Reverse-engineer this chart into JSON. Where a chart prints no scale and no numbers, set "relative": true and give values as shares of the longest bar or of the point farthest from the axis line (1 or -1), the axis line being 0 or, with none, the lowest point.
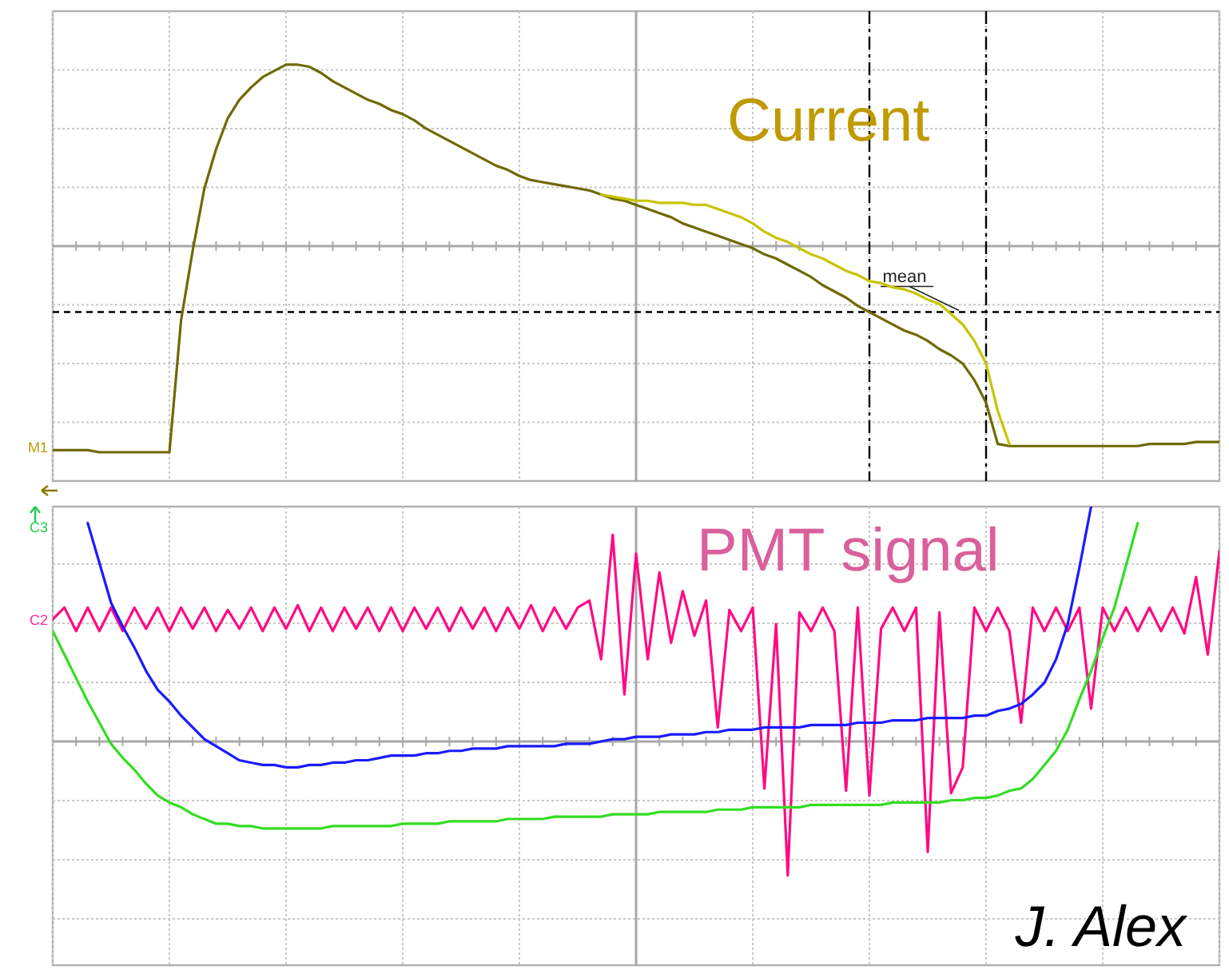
{
  "chart_data": [
    {
      "type": "line",
      "relative": true,
      "categories": [
        null,
        null,
        null,
        null,
        null,
        null,
        null,
        null,
        null,
        null,
        null,
        null,
        null,
        null,
        null,
        null,
        null,
        null,
        null,
        null,
        null,
        null,
        null,
        null,
        null,
        null,
        null,
        null,
        null,
        null,
        null,
        null,
        null,
        null,
        null,
        null,
        null,
        null,
        null,
        null,
        null,
        null,
        null,
        null,
        null,
        null,
        null,
        null,
        null,
        null,
        null,
        null,
        null,
        null,
        null,
        null,
        null,
        null,
        null,
        null,
        null,
        null,
        null,
        null,
        null,
        null,
        null,
        null,
        null,
        null,
        null,
        null,
        null,
        null,
        null,
        null,
        null,
        null,
        null,
        null,
        null,
        null,
        null,
        null,
        null,
        null,
        null,
        null,
        null,
        null,
        null,
        null,
        null,
        null,
        null,
        null,
        null,
        null,
        null,
        null,
        null
      ],
      "grid": true,
      "line_style": "solid",
      "series": [
        {
          "color": "#6e6a00",
          "values": [
            -0.99,
            -0.99,
            -0.99,
            -0.99,
            -1.0,
            -1.0,
            -1.0,
            -1.0,
            -1.0,
            -1.0,
            -1.0,
            -0.36,
            -0.02,
            0.28,
            0.47,
            0.62,
            0.71,
            0.77,
            0.82,
            0.85,
            0.88,
            0.88,
            0.87,
            0.84,
            0.8,
            0.77,
            0.74,
            0.71,
            0.69,
            0.66,
            0.64,
            0.61,
            0.57,
            0.54,
            0.51,
            0.48,
            0.45,
            0.42,
            0.39,
            0.37,
            0.34,
            0.32,
            0.31,
            0.3,
            0.29,
            0.28,
            0.27,
            0.25,
            0.23,
            0.22,
            0.2,
            0.18,
            0.16,
            0.14,
            0.11,
            0.09,
            0.07,
            0.05,
            0.03,
            0.01,
            -0.01,
            -0.04,
            -0.06,
            -0.09,
            -0.12,
            -0.15,
            -0.19,
            -0.22,
            -0.25,
            -0.29,
            -0.32,
            -0.35,
            -0.38,
            -0.41,
            -0.43,
            -0.46,
            -0.5,
            -0.53,
            -0.57,
            -0.65,
            -0.76,
            -0.96,
            -0.97,
            -0.97,
            -0.97,
            -0.97,
            -0.97,
            -0.97,
            -0.97,
            -0.97,
            -0.97,
            -0.97,
            -0.97,
            -0.97,
            -0.96,
            -0.96,
            -0.96,
            -0.96,
            -0.95,
            -0.95,
            -0.95
          ]
        },
        {
          "color": "#c8c400",
          "values": [
            null,
            null,
            null,
            null,
            null,
            null,
            null,
            null,
            null,
            null,
            null,
            null,
            null,
            null,
            null,
            null,
            null,
            null,
            null,
            null,
            null,
            null,
            null,
            null,
            null,
            null,
            null,
            null,
            null,
            null,
            null,
            null,
            null,
            null,
            null,
            null,
            null,
            null,
            null,
            null,
            null,
            null,
            null,
            null,
            null,
            null,
            null,
            0.25,
            0.24,
            0.23,
            0.22,
            0.22,
            0.21,
            0.21,
            0.21,
            0.2,
            0.2,
            0.18,
            0.16,
            0.14,
            0.11,
            0.07,
            0.04,
            0.02,
            -0.01,
            -0.04,
            -0.06,
            -0.09,
            -0.12,
            -0.14,
            -0.17,
            -0.18,
            -0.2,
            -0.21,
            -0.23,
            -0.26,
            -0.28,
            -0.33,
            -0.38,
            -0.46,
            -0.57,
            -0.8,
            -0.96,
            null,
            null,
            null,
            null,
            null,
            null,
            null,
            null,
            null,
            null,
            null,
            null,
            null,
            null,
            null,
            null,
            null,
            null
          ]
        }
      ],
      "ref_lines": [
        {
          "axis": "y",
          "value": -0.32,
          "label": "mean",
          "line_style": "dashed",
          "color": "#000000"
        }
      ],
      "annotations": [
        "M1",
        "Current"
      ]
    },
    {
      "type": "line",
      "relative": true,
      "categories": [
        null,
        null,
        null,
        null,
        null,
        null,
        null,
        null,
        null,
        null,
        null,
        null,
        null,
        null,
        null,
        null,
        null,
        null,
        null,
        null,
        null,
        null,
        null,
        null,
        null,
        null,
        null,
        null,
        null,
        null,
        null,
        null,
        null,
        null,
        null,
        null,
        null,
        null,
        null,
        null,
        null,
        null,
        null,
        null,
        null,
        null,
        null,
        null,
        null,
        null,
        null,
        null,
        null,
        null,
        null,
        null,
        null,
        null,
        null,
        null,
        null,
        null,
        null,
        null,
        null,
        null,
        null,
        null,
        null,
        null,
        null,
        null,
        null,
        null,
        null,
        null,
        null,
        null,
        null,
        null,
        null,
        null,
        null,
        null,
        null,
        null,
        null,
        null,
        null,
        null,
        null,
        null,
        null,
        null,
        null,
        null,
        null,
        null,
        null,
        null,
        null
      ],
      "grid": true,
      "line_style": "solid",
      "series": [
        {
          "color": "#ff0a84",
          "values": [
            0.52,
            0.57,
            0.47,
            0.57,
            0.47,
            0.57,
            0.47,
            0.57,
            0.48,
            0.57,
            0.47,
            0.57,
            0.48,
            0.57,
            0.47,
            0.56,
            0.48,
            0.57,
            0.47,
            0.57,
            0.48,
            0.58,
            0.47,
            0.57,
            0.47,
            0.57,
            0.48,
            0.57,
            0.47,
            0.57,
            0.47,
            0.57,
            0.48,
            0.57,
            0.47,
            0.57,
            0.48,
            0.57,
            0.47,
            0.57,
            0.48,
            0.58,
            0.47,
            0.57,
            0.48,
            0.57,
            0.6,
            0.35,
            0.88,
            0.2,
            0.8,
            0.35,
            0.72,
            0.42,
            0.64,
            0.45,
            0.6,
            0.06,
            0.56,
            0.47,
            0.57,
            -0.2,
            0.5,
            -0.57,
            0.55,
            0.47,
            0.57,
            0.47,
            -0.21,
            0.57,
            -0.23,
            0.48,
            0.57,
            0.47,
            0.57,
            -0.47,
            0.55,
            -0.22,
            -0.11,
            0.57,
            0.47,
            0.57,
            0.47,
            0.08,
            0.57,
            0.47,
            0.57,
            0.47,
            0.57,
            0.14,
            0.57,
            0.47,
            0.57,
            0.47,
            0.57,
            0.47,
            0.57,
            0.46,
            0.7,
            0.37,
            0.81
          ]
        },
        {
          "color": "#1a1aff",
          "values": [
            null,
            null,
            null,
            0.93,
            0.76,
            0.59,
            0.49,
            0.4,
            0.3,
            0.22,
            0.17,
            0.11,
            0.06,
            0.01,
            -0.02,
            -0.05,
            -0.08,
            -0.09,
            -0.1,
            -0.1,
            -0.11,
            -0.11,
            -0.1,
            -0.1,
            -0.09,
            -0.09,
            -0.08,
            -0.08,
            -0.07,
            -0.06,
            -0.06,
            -0.06,
            -0.05,
            -0.05,
            -0.04,
            -0.04,
            -0.03,
            -0.03,
            -0.03,
            -0.02,
            -0.02,
            -0.02,
            -0.02,
            -0.02,
            -0.01,
            -0.01,
            -0.01,
            0.0,
            0.01,
            0.01,
            0.02,
            0.02,
            0.02,
            0.03,
            0.03,
            0.03,
            0.04,
            0.04,
            0.05,
            0.05,
            0.05,
            0.06,
            0.06,
            0.06,
            0.06,
            0.07,
            0.07,
            0.07,
            0.07,
            0.08,
            0.08,
            0.08,
            0.09,
            0.09,
            0.09,
            0.1,
            0.1,
            0.1,
            0.1,
            0.11,
            0.11,
            0.13,
            0.14,
            0.16,
            0.2,
            0.25,
            0.35,
            0.5,
            0.74,
            1.0,
            null,
            null,
            null,
            null,
            null,
            null,
            null,
            null,
            null,
            null,
            null
          ]
        },
        {
          "color": "#33dd22",
          "values": [
            0.47,
            0.37,
            0.27,
            0.17,
            0.08,
            -0.01,
            -0.07,
            -0.12,
            -0.18,
            -0.23,
            -0.26,
            -0.28,
            -0.31,
            -0.33,
            -0.35,
            -0.35,
            -0.36,
            -0.36,
            -0.37,
            -0.37,
            -0.37,
            -0.37,
            -0.37,
            -0.37,
            -0.36,
            -0.36,
            -0.36,
            -0.36,
            -0.36,
            -0.36,
            -0.35,
            -0.35,
            -0.35,
            -0.35,
            -0.34,
            -0.34,
            -0.34,
            -0.34,
            -0.34,
            -0.33,
            -0.33,
            -0.33,
            -0.33,
            -0.32,
            -0.32,
            -0.32,
            -0.32,
            -0.32,
            -0.31,
            -0.31,
            -0.31,
            -0.31,
            -0.3,
            -0.3,
            -0.3,
            -0.3,
            -0.3,
            -0.29,
            -0.29,
            -0.29,
            -0.28,
            -0.28,
            -0.28,
            -0.28,
            -0.28,
            -0.27,
            -0.27,
            -0.27,
            -0.27,
            -0.27,
            -0.27,
            -0.27,
            -0.26,
            -0.26,
            -0.26,
            -0.26,
            -0.26,
            -0.25,
            -0.25,
            -0.24,
            -0.24,
            -0.23,
            -0.21,
            -0.2,
            -0.16,
            -0.1,
            -0.04,
            0.05,
            0.18,
            0.3,
            0.44,
            0.57,
            0.75,
            0.93,
            null,
            null,
            null,
            null,
            null,
            null,
            null
          ]
        }
      ],
      "annotations": [
        "C3",
        "C2",
        "PMT signal",
        "J. Alex"
      ]
    }
  ]
}
